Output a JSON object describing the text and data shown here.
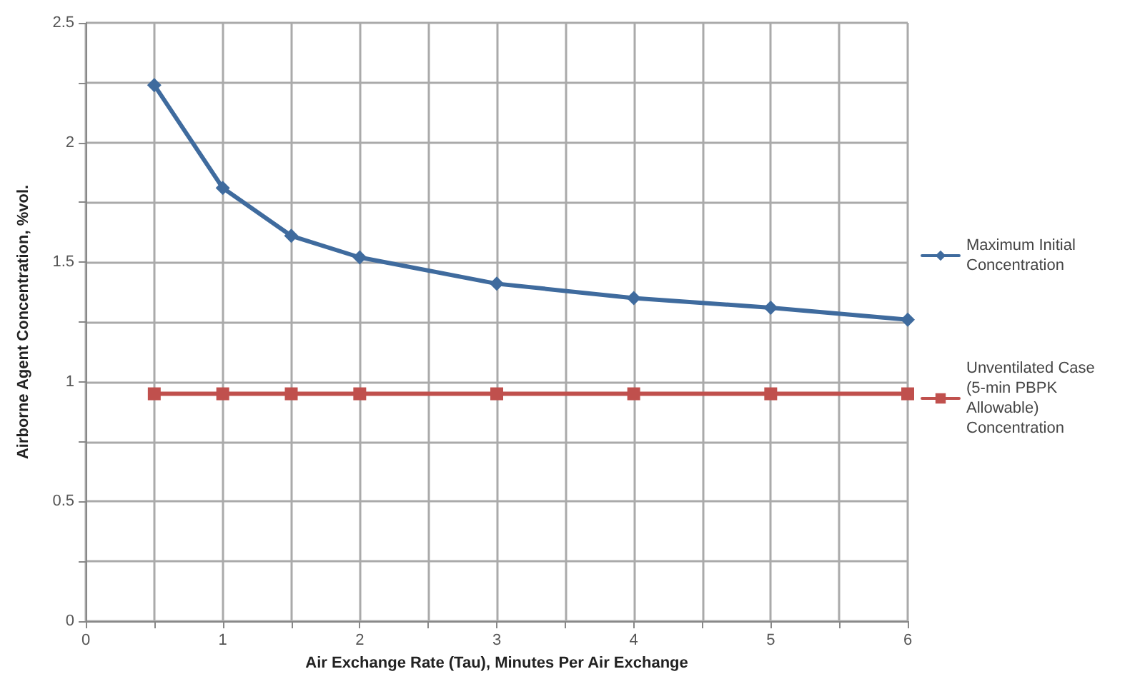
{
  "chart_data": {
    "type": "line",
    "xlabel": "Air Exchange Rate (Tau), Minutes Per Air Exchange",
    "ylabel": "Airborne Agent Concentration, %vol.",
    "x": [
      0.5,
      1,
      1.5,
      2,
      3,
      4,
      5,
      6
    ],
    "series": [
      {
        "name": "Maximum Initial Concentration",
        "color": "#3f6b9e",
        "marker": "diamond",
        "values": [
          2.24,
          1.81,
          1.61,
          1.52,
          1.41,
          1.35,
          1.31,
          1.26
        ]
      },
      {
        "name": "Unventilated Case (5-min PBPK Allowable) Concentration",
        "color": "#c0504d",
        "marker": "square",
        "values": [
          0.95,
          0.95,
          0.95,
          0.95,
          0.95,
          0.95,
          0.95,
          0.95
        ]
      }
    ],
    "xlim": [
      0,
      6
    ],
    "xticks": [
      0,
      {
        "value": 0.5,
        "label": null
      },
      1,
      {
        "value": 1.5,
        "label": null
      },
      2,
      {
        "value": 2.5,
        "label": null
      },
      3,
      {
        "value": 3.5,
        "label": null
      },
      4,
      {
        "value": 4.5,
        "label": null
      },
      5,
      {
        "value": 5.5,
        "label": null
      },
      6
    ],
    "ylim": [
      0,
      2.5
    ],
    "yticks": [
      0,
      {
        "value": 0.25,
        "label": null
      },
      0.5,
      {
        "value": 0.75,
        "label": null
      },
      1,
      {
        "value": 1.25,
        "label": null
      },
      1.5,
      {
        "value": 1.75,
        "label": null
      },
      2,
      {
        "value": 2.25,
        "label": null
      },
      2.5
    ],
    "grid": true,
    "legend": "right",
    "line_style": "solid"
  }
}
